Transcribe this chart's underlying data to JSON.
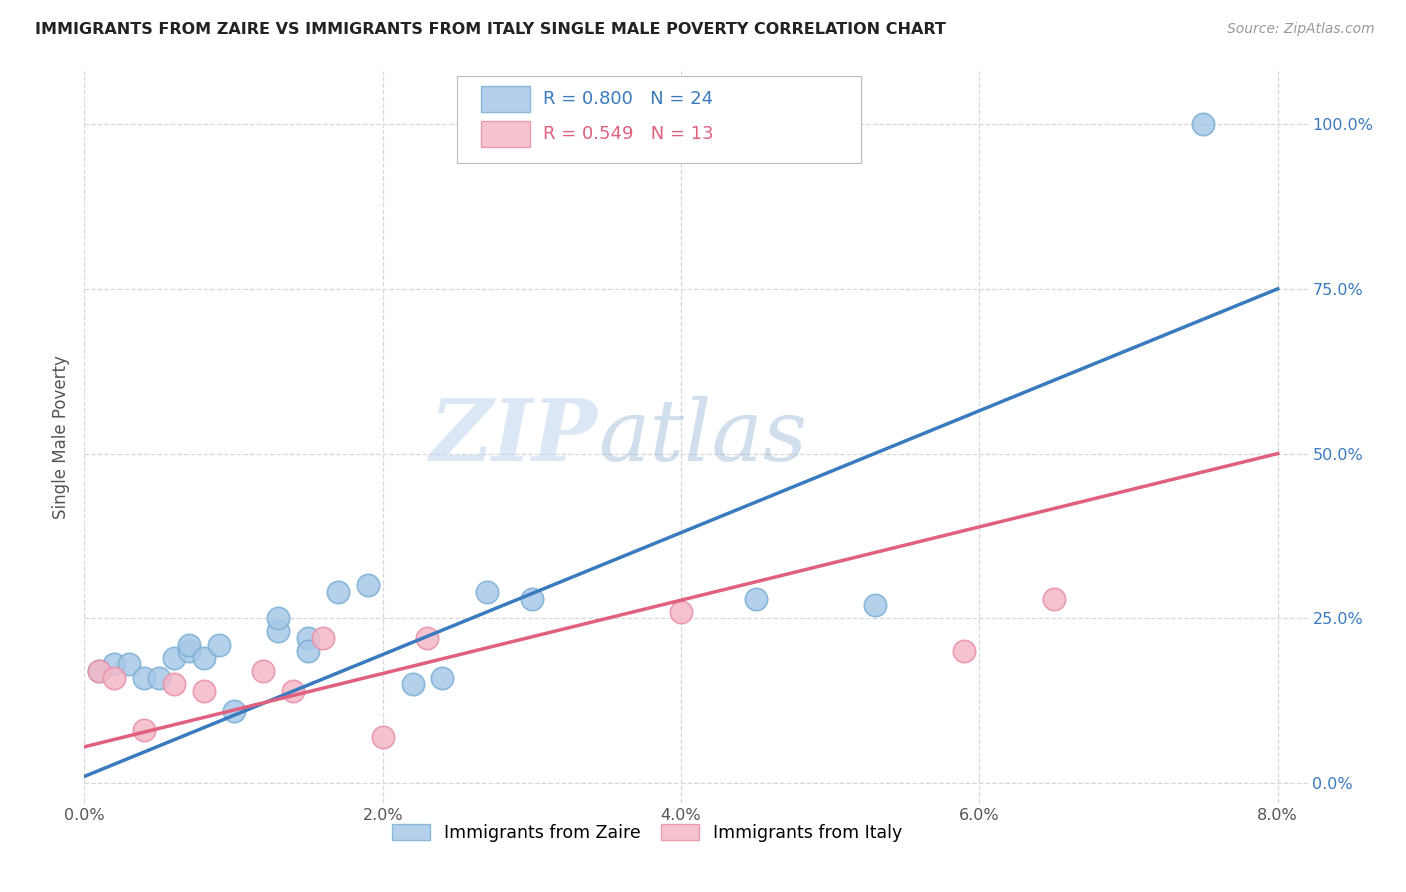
{
  "title": "IMMIGRANTS FROM ZAIRE VS IMMIGRANTS FROM ITALY SINGLE MALE POVERTY CORRELATION CHART",
  "source": "Source: ZipAtlas.com",
  "ylabel": "Single Male Poverty",
  "xlim": [
    0.0,
    0.082
  ],
  "ylim": [
    -0.03,
    1.08
  ],
  "xtick_labels": [
    "0.0%",
    "2.0%",
    "4.0%",
    "6.0%",
    "8.0%"
  ],
  "xtick_values": [
    0.0,
    0.02,
    0.04,
    0.06,
    0.08
  ],
  "ytick_labels": [
    "0.0%",
    "25.0%",
    "50.0%",
    "75.0%",
    "100.0%"
  ],
  "ytick_values": [
    0.0,
    0.25,
    0.5,
    0.75,
    1.0
  ],
  "zaire_color": "#a8c8e8",
  "zaire_edge_color": "#7bafd4",
  "italy_color": "#f4b8c8",
  "italy_edge_color": "#e890a8",
  "zaire_R": 0.8,
  "zaire_N": 24,
  "italy_R": 0.549,
  "italy_N": 13,
  "zaire_legend_label": "Immigrants from Zaire",
  "italy_legend_label": "Immigrants from Italy",
  "watermark_zip": "ZIP",
  "watermark_atlas": "atlas",
  "blue_line_x": [
    0.0,
    0.08
  ],
  "blue_line_y": [
    0.01,
    0.75
  ],
  "pink_line_x": [
    0.0,
    0.08
  ],
  "pink_line_y": [
    0.055,
    0.5
  ],
  "zaire_x": [
    0.001,
    0.002,
    0.003,
    0.004,
    0.005,
    0.006,
    0.007,
    0.007,
    0.008,
    0.009,
    0.01,
    0.013,
    0.013,
    0.015,
    0.015,
    0.017,
    0.019,
    0.022,
    0.024,
    0.027,
    0.03,
    0.045,
    0.053,
    0.075
  ],
  "zaire_y": [
    0.17,
    0.18,
    0.18,
    0.16,
    0.16,
    0.19,
    0.2,
    0.21,
    0.19,
    0.21,
    0.11,
    0.23,
    0.25,
    0.22,
    0.2,
    0.29,
    0.3,
    0.15,
    0.16,
    0.29,
    0.28,
    0.28,
    0.27,
    1.0
  ],
  "italy_x": [
    0.001,
    0.002,
    0.004,
    0.006,
    0.008,
    0.012,
    0.014,
    0.016,
    0.02,
    0.023,
    0.04,
    0.059,
    0.065
  ],
  "italy_y": [
    0.17,
    0.16,
    0.08,
    0.15,
    0.14,
    0.17,
    0.14,
    0.22,
    0.07,
    0.22,
    0.26,
    0.2,
    0.28
  ],
  "background_color": "#ffffff",
  "grid_color": "#d8d8d8",
  "title_color": "#222222",
  "axis_label_color": "#555555",
  "blue_line_color": "#3a7abf",
  "pink_line_color": "#e06080",
  "ytick_color": "#3a7abf",
  "xtick_color": "#555555"
}
